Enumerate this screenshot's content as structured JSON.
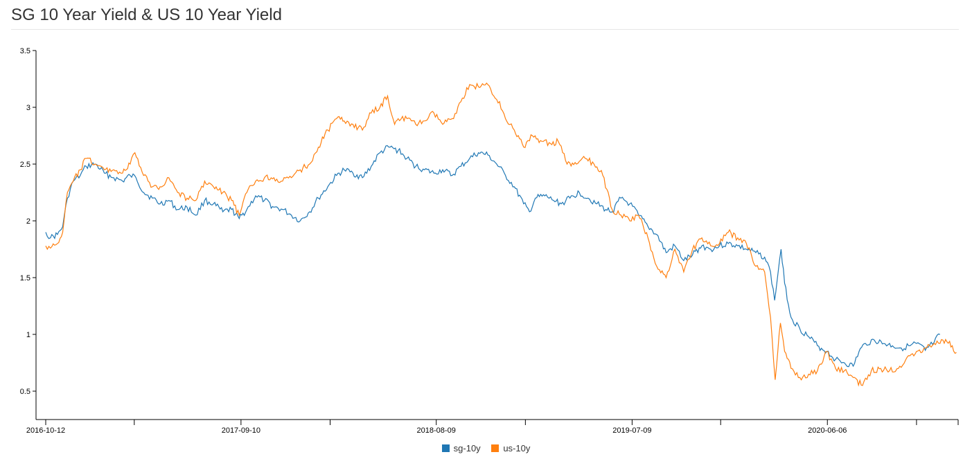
{
  "page": {
    "title": "SG 10 Year Yield & US 10 Year Yield"
  },
  "chart_data": {
    "type": "line",
    "title": "SG 10 Year Yield & US 10 Year Yield",
    "xlabel": "",
    "ylabel": "",
    "x_range": [
      "2016-10-12",
      "2021-01-15"
    ],
    "ylim": [
      0.25,
      3.5
    ],
    "y_ticks": [
      0.5,
      1,
      1.5,
      2,
      2.5,
      3,
      3.5
    ],
    "x_ticks": [
      {
        "date": "2016-10-12",
        "label": "2016-10-12"
      },
      {
        "date": "2017-03-12",
        "label": ""
      },
      {
        "date": "2017-09-10",
        "label": "2017-09-10"
      },
      {
        "date": "2018-02-09",
        "label": ""
      },
      {
        "date": "2018-08-09",
        "label": "2018-08-09"
      },
      {
        "date": "2019-01-08",
        "label": ""
      },
      {
        "date": "2019-07-09",
        "label": "2019-07-09"
      },
      {
        "date": "2019-12-07",
        "label": ""
      },
      {
        "date": "2020-06-06",
        "label": "2020-06-06"
      },
      {
        "date": "2020-11-05",
        "label": ""
      }
    ],
    "grid": false,
    "legend_position": "bottom-center",
    "series": [
      {
        "name": "sg-10y",
        "color": "#1f77b4",
        "points": [
          [
            "2016-10-12",
            1.9
          ],
          [
            "2016-10-20",
            1.85
          ],
          [
            "2016-11-01",
            1.88
          ],
          [
            "2016-11-10",
            1.95
          ],
          [
            "2016-11-18",
            2.2
          ],
          [
            "2016-11-28",
            2.35
          ],
          [
            "2016-12-10",
            2.4
          ],
          [
            "2016-12-20",
            2.48
          ],
          [
            "2017-01-05",
            2.5
          ],
          [
            "2017-01-20",
            2.42
          ],
          [
            "2017-02-05",
            2.38
          ],
          [
            "2017-02-20",
            2.35
          ],
          [
            "2017-03-05",
            2.4
          ],
          [
            "2017-03-15",
            2.38
          ],
          [
            "2017-03-28",
            2.25
          ],
          [
            "2017-04-12",
            2.2
          ],
          [
            "2017-04-25",
            2.15
          ],
          [
            "2017-05-10",
            2.18
          ],
          [
            "2017-05-25",
            2.1
          ],
          [
            "2017-06-10",
            2.12
          ],
          [
            "2017-06-25",
            2.05
          ],
          [
            "2017-07-10",
            2.18
          ],
          [
            "2017-07-25",
            2.15
          ],
          [
            "2017-08-10",
            2.08
          ],
          [
            "2017-08-25",
            2.1
          ],
          [
            "2017-09-07",
            2.02
          ],
          [
            "2017-09-20",
            2.1
          ],
          [
            "2017-10-05",
            2.22
          ],
          [
            "2017-10-20",
            2.18
          ],
          [
            "2017-11-05",
            2.12
          ],
          [
            "2017-11-20",
            2.1
          ],
          [
            "2017-12-05",
            2.05
          ],
          [
            "2017-12-20",
            2.0
          ],
          [
            "2018-01-05",
            2.08
          ],
          [
            "2018-01-20",
            2.2
          ],
          [
            "2018-02-05",
            2.3
          ],
          [
            "2018-02-20",
            2.4
          ],
          [
            "2018-03-05",
            2.45
          ],
          [
            "2018-03-20",
            2.42
          ],
          [
            "2018-04-05",
            2.38
          ],
          [
            "2018-04-20",
            2.48
          ],
          [
            "2018-05-05",
            2.6
          ],
          [
            "2018-05-20",
            2.65
          ],
          [
            "2018-06-05",
            2.62
          ],
          [
            "2018-06-20",
            2.55
          ],
          [
            "2018-07-05",
            2.48
          ],
          [
            "2018-07-20",
            2.45
          ],
          [
            "2018-08-05",
            2.42
          ],
          [
            "2018-08-20",
            2.45
          ],
          [
            "2018-09-05",
            2.4
          ],
          [
            "2018-09-20",
            2.48
          ],
          [
            "2018-10-05",
            2.55
          ],
          [
            "2018-10-20",
            2.6
          ],
          [
            "2018-11-05",
            2.58
          ],
          [
            "2018-11-20",
            2.5
          ],
          [
            "2018-12-05",
            2.4
          ],
          [
            "2018-12-20",
            2.3
          ],
          [
            "2019-01-05",
            2.15
          ],
          [
            "2019-01-15",
            2.08
          ],
          [
            "2019-01-25",
            2.2
          ],
          [
            "2019-02-10",
            2.22
          ],
          [
            "2019-02-25",
            2.18
          ],
          [
            "2019-03-10",
            2.15
          ],
          [
            "2019-03-25",
            2.2
          ],
          [
            "2019-04-10",
            2.25
          ],
          [
            "2019-04-25",
            2.2
          ],
          [
            "2019-05-10",
            2.15
          ],
          [
            "2019-05-25",
            2.1
          ],
          [
            "2019-06-05",
            2.08
          ],
          [
            "2019-06-20",
            2.2
          ],
          [
            "2019-07-05",
            2.15
          ],
          [
            "2019-07-20",
            2.05
          ],
          [
            "2019-08-05",
            1.95
          ],
          [
            "2019-08-20",
            1.88
          ],
          [
            "2019-09-05",
            1.72
          ],
          [
            "2019-09-20",
            1.78
          ],
          [
            "2019-10-05",
            1.65
          ],
          [
            "2019-10-20",
            1.7
          ],
          [
            "2019-11-05",
            1.78
          ],
          [
            "2019-11-20",
            1.75
          ],
          [
            "2019-12-05",
            1.78
          ],
          [
            "2019-12-20",
            1.8
          ],
          [
            "2020-01-05",
            1.78
          ],
          [
            "2020-01-20",
            1.75
          ],
          [
            "2020-02-05",
            1.72
          ],
          [
            "2020-02-20",
            1.68
          ],
          [
            "2020-03-01",
            1.55
          ],
          [
            "2020-03-08",
            1.3
          ],
          [
            "2020-03-14",
            1.55
          ],
          [
            "2020-03-19",
            1.75
          ],
          [
            "2020-03-25",
            1.45
          ],
          [
            "2020-04-05",
            1.15
          ],
          [
            "2020-04-20",
            1.05
          ],
          [
            "2020-05-05",
            0.98
          ],
          [
            "2020-05-20",
            0.9
          ],
          [
            "2020-06-05",
            0.85
          ],
          [
            "2020-06-20",
            0.78
          ],
          [
            "2020-07-05",
            0.75
          ],
          [
            "2020-07-20",
            0.72
          ],
          [
            "2020-07-30",
            0.85
          ],
          [
            "2020-08-10",
            0.92
          ],
          [
            "2020-08-25",
            0.95
          ],
          [
            "2020-09-10",
            0.92
          ],
          [
            "2020-09-25",
            0.9
          ],
          [
            "2020-10-10",
            0.88
          ],
          [
            "2020-10-25",
            0.9
          ],
          [
            "2020-11-05",
            0.92
          ],
          [
            "2020-11-20",
            0.86
          ],
          [
            "2020-12-05",
            0.93
          ],
          [
            "2020-12-15",
            1.0
          ]
        ]
      },
      {
        "name": "us-10y",
        "color": "#ff7f0e",
        "points": [
          [
            "2016-10-12",
            1.78
          ],
          [
            "2016-10-20",
            1.76
          ],
          [
            "2016-11-01",
            1.8
          ],
          [
            "2016-11-10",
            1.9
          ],
          [
            "2016-11-18",
            2.25
          ],
          [
            "2016-11-28",
            2.35
          ],
          [
            "2016-12-10",
            2.45
          ],
          [
            "2016-12-20",
            2.55
          ],
          [
            "2017-01-05",
            2.5
          ],
          [
            "2017-01-20",
            2.45
          ],
          [
            "2017-02-05",
            2.45
          ],
          [
            "2017-02-20",
            2.42
          ],
          [
            "2017-03-05",
            2.5
          ],
          [
            "2017-03-13",
            2.6
          ],
          [
            "2017-03-28",
            2.4
          ],
          [
            "2017-04-12",
            2.3
          ],
          [
            "2017-04-25",
            2.3
          ],
          [
            "2017-05-10",
            2.38
          ],
          [
            "2017-05-25",
            2.25
          ],
          [
            "2017-06-10",
            2.2
          ],
          [
            "2017-06-25",
            2.18
          ],
          [
            "2017-07-10",
            2.35
          ],
          [
            "2017-07-25",
            2.3
          ],
          [
            "2017-08-10",
            2.25
          ],
          [
            "2017-08-25",
            2.18
          ],
          [
            "2017-09-07",
            2.05
          ],
          [
            "2017-09-20",
            2.25
          ],
          [
            "2017-10-05",
            2.35
          ],
          [
            "2017-10-20",
            2.38
          ],
          [
            "2017-11-05",
            2.38
          ],
          [
            "2017-11-20",
            2.35
          ],
          [
            "2017-12-05",
            2.38
          ],
          [
            "2017-12-20",
            2.45
          ],
          [
            "2018-01-05",
            2.5
          ],
          [
            "2018-01-20",
            2.65
          ],
          [
            "2018-02-05",
            2.8
          ],
          [
            "2018-02-20",
            2.9
          ],
          [
            "2018-03-05",
            2.88
          ],
          [
            "2018-03-20",
            2.85
          ],
          [
            "2018-04-05",
            2.8
          ],
          [
            "2018-04-20",
            2.95
          ],
          [
            "2018-05-05",
            3.0
          ],
          [
            "2018-05-18",
            3.1
          ],
          [
            "2018-05-30",
            2.85
          ],
          [
            "2018-06-05",
            2.9
          ],
          [
            "2018-06-20",
            2.9
          ],
          [
            "2018-07-05",
            2.85
          ],
          [
            "2018-07-20",
            2.88
          ],
          [
            "2018-08-05",
            2.95
          ],
          [
            "2018-08-20",
            2.85
          ],
          [
            "2018-09-05",
            2.9
          ],
          [
            "2018-09-20",
            3.05
          ],
          [
            "2018-10-05",
            3.2
          ],
          [
            "2018-10-20",
            3.18
          ],
          [
            "2018-11-05",
            3.2
          ],
          [
            "2018-11-15",
            3.1
          ],
          [
            "2018-11-25",
            3.05
          ],
          [
            "2018-12-05",
            2.9
          ],
          [
            "2018-12-20",
            2.8
          ],
          [
            "2019-01-05",
            2.65
          ],
          [
            "2019-01-20",
            2.75
          ],
          [
            "2019-02-05",
            2.7
          ],
          [
            "2019-02-20",
            2.68
          ],
          [
            "2019-03-05",
            2.7
          ],
          [
            "2019-03-20",
            2.5
          ],
          [
            "2019-04-05",
            2.5
          ],
          [
            "2019-04-20",
            2.55
          ],
          [
            "2019-05-05",
            2.5
          ],
          [
            "2019-05-20",
            2.4
          ],
          [
            "2019-06-05",
            2.1
          ],
          [
            "2019-06-20",
            2.05
          ],
          [
            "2019-07-05",
            2.0
          ],
          [
            "2019-07-20",
            2.05
          ],
          [
            "2019-08-05",
            1.85
          ],
          [
            "2019-08-20",
            1.6
          ],
          [
            "2019-09-05",
            1.5
          ],
          [
            "2019-09-20",
            1.75
          ],
          [
            "2019-10-05",
            1.55
          ],
          [
            "2019-10-20",
            1.75
          ],
          [
            "2019-11-05",
            1.85
          ],
          [
            "2019-11-20",
            1.78
          ],
          [
            "2019-12-05",
            1.8
          ],
          [
            "2019-12-20",
            1.9
          ],
          [
            "2020-01-05",
            1.85
          ],
          [
            "2020-01-20",
            1.8
          ],
          [
            "2020-02-05",
            1.6
          ],
          [
            "2020-02-20",
            1.55
          ],
          [
            "2020-03-01",
            1.15
          ],
          [
            "2020-03-09",
            0.6
          ],
          [
            "2020-03-18",
            1.1
          ],
          [
            "2020-03-25",
            0.85
          ],
          [
            "2020-04-05",
            0.7
          ],
          [
            "2020-04-20",
            0.62
          ],
          [
            "2020-05-05",
            0.65
          ],
          [
            "2020-05-20",
            0.68
          ],
          [
            "2020-06-05",
            0.85
          ],
          [
            "2020-06-20",
            0.7
          ],
          [
            "2020-07-05",
            0.68
          ],
          [
            "2020-07-20",
            0.62
          ],
          [
            "2020-08-05",
            0.55
          ],
          [
            "2020-08-20",
            0.68
          ],
          [
            "2020-09-05",
            0.7
          ],
          [
            "2020-09-20",
            0.68
          ],
          [
            "2020-10-05",
            0.7
          ],
          [
            "2020-10-20",
            0.8
          ],
          [
            "2020-11-05",
            0.85
          ],
          [
            "2020-11-20",
            0.88
          ],
          [
            "2020-12-05",
            0.92
          ],
          [
            "2020-12-20",
            0.95
          ],
          [
            "2021-01-05",
            0.9
          ],
          [
            "2021-01-12",
            0.84
          ]
        ]
      }
    ]
  },
  "legend": [
    {
      "name": "sg-10y",
      "color": "#1f77b4"
    },
    {
      "name": "us-10y",
      "color": "#ff7f0e"
    }
  ]
}
